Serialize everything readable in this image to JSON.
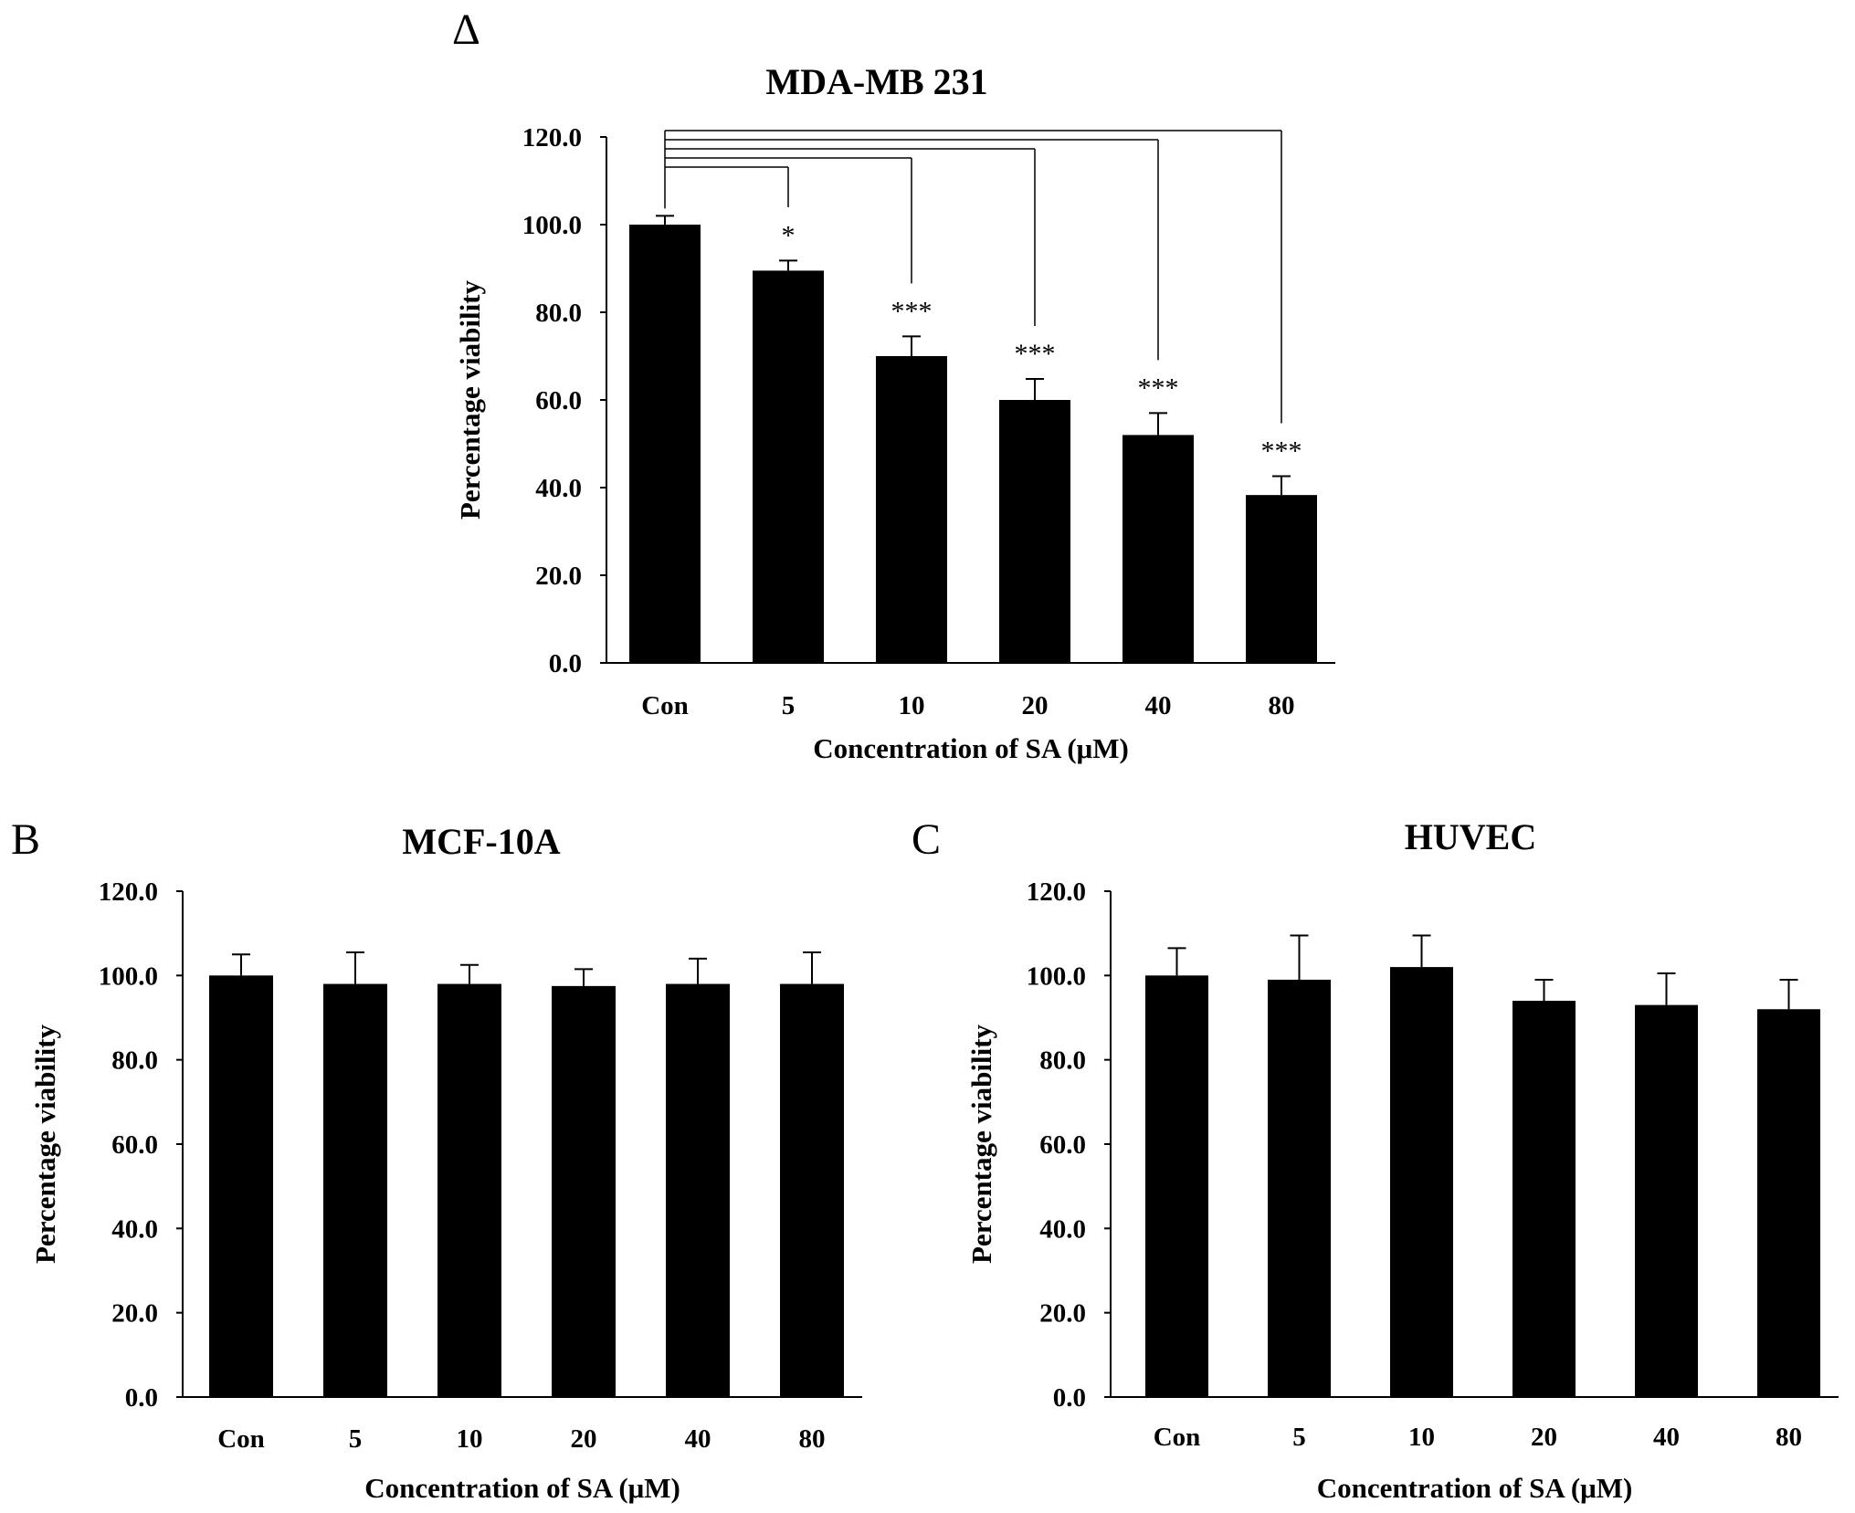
{
  "panel_labels": [
    "Δ",
    "B",
    "C"
  ],
  "colors": {
    "bar": "#000000",
    "axis": "#000000",
    "background": "#ffffff"
  },
  "chart_data": [
    {
      "type": "bar",
      "panel": "Δ",
      "title": "MDA-MB  231",
      "xlabel": "Concentration of SA (μM)",
      "ylabel": "Percentage viability",
      "categories": [
        "Con",
        "5",
        "10",
        "20",
        "40",
        "80"
      ],
      "values": [
        100.0,
        89.5,
        70.0,
        60.0,
        52.0,
        38.3
      ],
      "errors": [
        2.0,
        2.3,
        4.5,
        4.8,
        5.0,
        4.3
      ],
      "ylim": [
        0,
        120
      ],
      "yticks": [
        "0.0",
        "20.0",
        "40.0",
        "60.0",
        "80.0",
        "100.0",
        "120.0"
      ],
      "significance": [
        {
          "vs": "Con",
          "category": "5",
          "label": "*"
        },
        {
          "vs": "Con",
          "category": "10",
          "label": "***"
        },
        {
          "vs": "Con",
          "category": "20",
          "label": "***"
        },
        {
          "vs": "Con",
          "category": "40",
          "label": "***"
        },
        {
          "vs": "Con",
          "category": "80",
          "label": "***"
        }
      ],
      "grid": false
    },
    {
      "type": "bar",
      "panel": "B",
      "title": "MCF-10A",
      "xlabel": "Concentration of SA (μM)",
      "ylabel": "Percentage viability",
      "categories": [
        "Con",
        "5",
        "10",
        "20",
        "40",
        "80"
      ],
      "values": [
        100.0,
        98.0,
        98.0,
        97.5,
        98.0,
        98.0
      ],
      "errors": [
        5.0,
        7.5,
        4.5,
        4.0,
        6.0,
        7.5
      ],
      "ylim": [
        0,
        120
      ],
      "yticks": [
        "0.0",
        "20.0",
        "40.0",
        "60.0",
        "80.0",
        "100.0",
        "120.0"
      ],
      "grid": false
    },
    {
      "type": "bar",
      "panel": "C",
      "title": "HUVEC",
      "xlabel": "Concentration of SA (μM)",
      "ylabel": "Percentage viability",
      "categories": [
        "Con",
        "5",
        "10",
        "20",
        "40",
        "80"
      ],
      "values": [
        100.0,
        99.0,
        102.0,
        94.0,
        93.0,
        92.0
      ],
      "errors": [
        6.5,
        10.5,
        7.5,
        5.0,
        7.5,
        7.0
      ],
      "ylim": [
        0,
        120
      ],
      "yticks": [
        "0.0",
        "20.0",
        "40.0",
        "60.0",
        "80.0",
        "100.0",
        "120.0"
      ],
      "grid": false
    }
  ]
}
